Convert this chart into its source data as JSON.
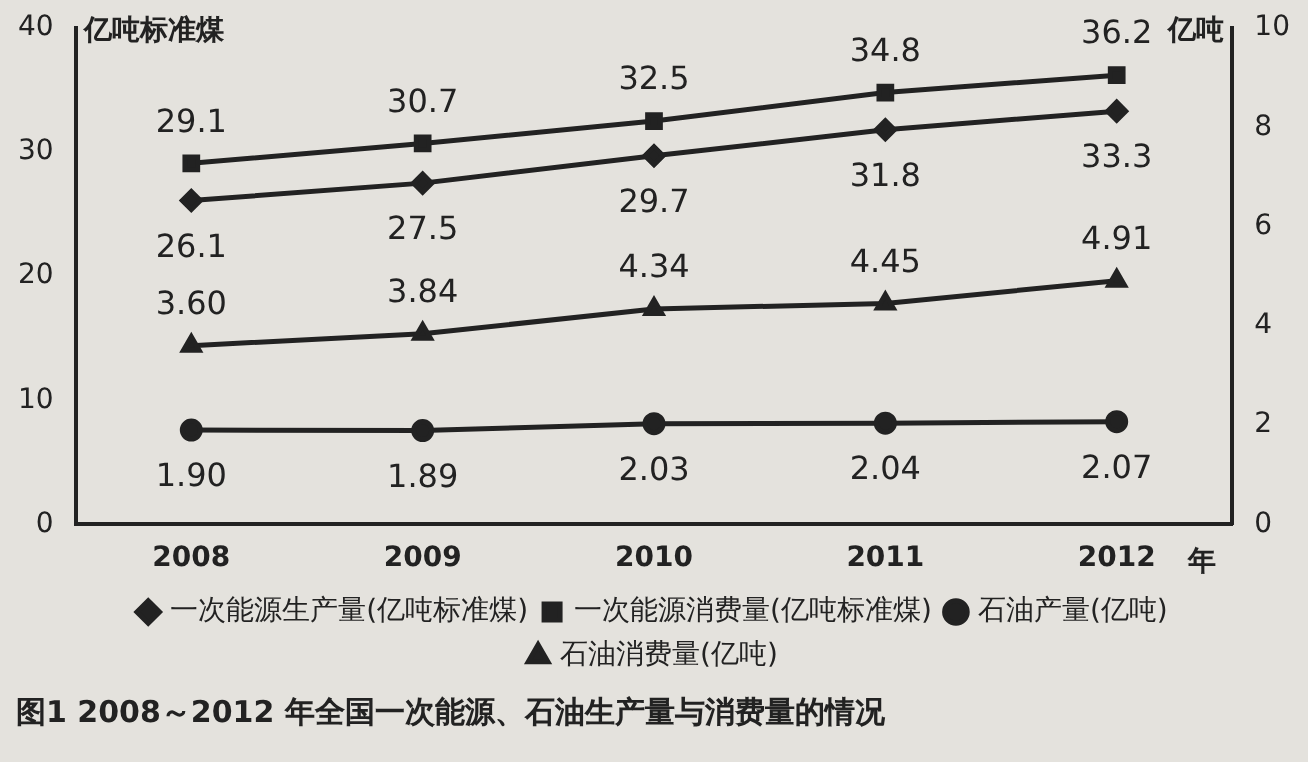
{
  "chart_data": {
    "type": "line",
    "title": "图1 2008～2012 年全国一次能源、石油生产量与消费量的情况",
    "xlabel": "年",
    "ylabel": "亿吨标准煤",
    "y2label": "亿吨",
    "categories": [
      "2008",
      "2009",
      "2010",
      "2011",
      "2012"
    ],
    "series": [
      {
        "name": "一次能源生产量(亿吨标准煤)",
        "color": "#222222",
        "marker": "diamond",
        "values": [
          26.1,
          27.5,
          29.7,
          31.8,
          33.3
        ],
        "value_labels": [
          "26.1",
          "27.5",
          "29.7",
          "31.8",
          "33.3"
        ]
      },
      {
        "name": "一次能源消费量(亿吨标准煤)",
        "color": "#222222",
        "marker": "square",
        "values": [
          29.1,
          30.7,
          32.5,
          34.8,
          36.2
        ],
        "value_labels": [
          "29.1",
          "30.7",
          "32.5",
          "34.8",
          "36.2"
        ]
      },
      {
        "name": "石油产量(亿吨)",
        "color": "#222222",
        "marker": "circle",
        "axis": "y2",
        "values": [
          1.9,
          1.89,
          2.03,
          2.04,
          2.07
        ],
        "value_labels": [
          "1.90",
          "1.89",
          "2.03",
          "2.04",
          "2.07"
        ]
      },
      {
        "name": "石油消费量(亿吨)",
        "color": "#222222",
        "marker": "triangle",
        "axis": "y2",
        "values": [
          3.6,
          3.84,
          4.34,
          4.45,
          4.91
        ],
        "value_labels": [
          "3.60",
          "3.84",
          "4.34",
          "4.45",
          "4.91"
        ]
      }
    ],
    "ylim": [
      0,
      40
    ],
    "yticks": [
      0,
      10,
      20,
      30,
      40
    ],
    "y2lim": [
      0,
      10
    ],
    "y2ticks": [
      0,
      2,
      4,
      6,
      8,
      10
    ],
    "grid": false,
    "legend": "bottom"
  }
}
